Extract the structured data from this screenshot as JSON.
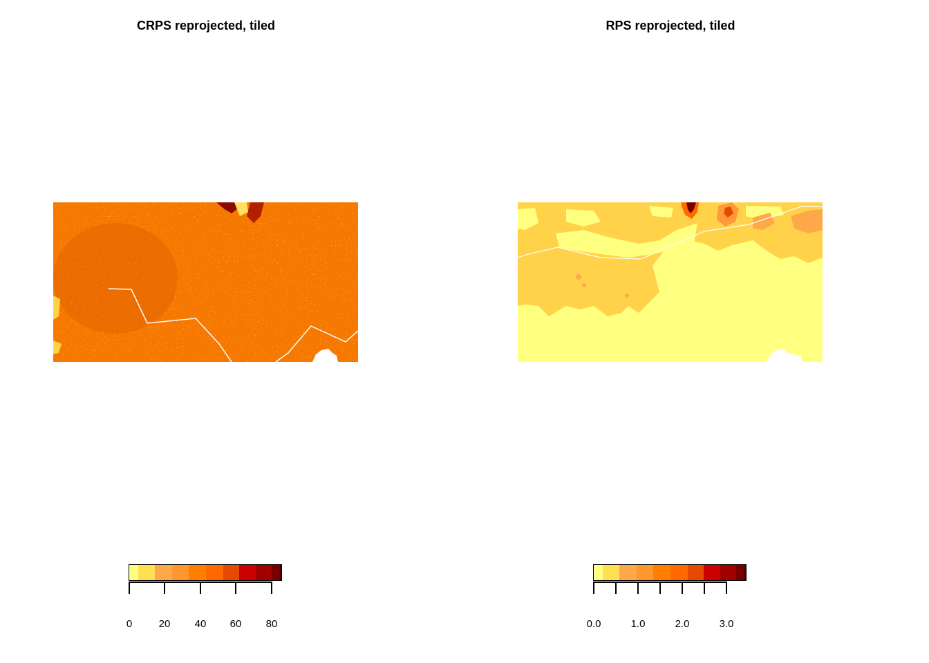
{
  "panels": [
    {
      "title": "CRPS reprojected, tiled",
      "base_color": "#f77800",
      "legend": {
        "colors": [
          "#ffff80",
          "#ffe052",
          "#ffa84a",
          "#ff962e",
          "#ff7f00",
          "#ff6a00",
          "#e44a00",
          "#cc0000",
          "#a00000",
          "#7a0000",
          "#4a0000"
        ],
        "tick_labels": [
          "0",
          "20",
          "40",
          "60",
          "80"
        ]
      }
    },
    {
      "title": "RPS reprojected, tiled",
      "base_color": "#ffff80",
      "legend": {
        "colors": [
          "#ffff80",
          "#ffe052",
          "#ffa84a",
          "#ff962e",
          "#ff7f00",
          "#ff6a00",
          "#e44a00",
          "#cc0000",
          "#a00000",
          "#7a0000",
          "#4a0000"
        ],
        "tick_labels": [
          "0.0",
          "1.0",
          "2.0",
          "3.0"
        ]
      }
    }
  ]
}
